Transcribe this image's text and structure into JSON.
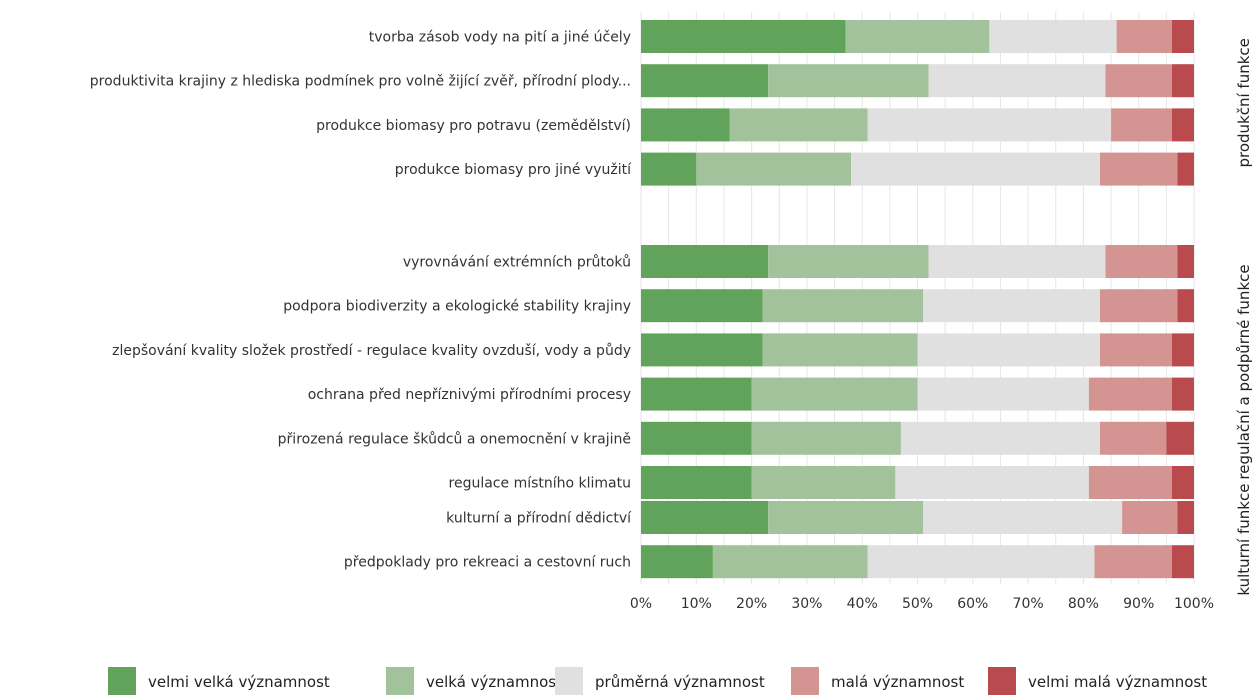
{
  "chart_data": {
    "type": "bar",
    "orientation": "horizontal",
    "stacked": true,
    "normalized": true,
    "xlim": [
      0,
      100
    ],
    "x_ticks": [
      "0%",
      "10%",
      "20%",
      "30%",
      "40%",
      "50%",
      "60%",
      "70%",
      "80%",
      "90%",
      "100%"
    ],
    "grid": true,
    "legend_position": "bottom",
    "series": [
      {
        "name": "velmi velká významnost",
        "color": "#62a35c"
      },
      {
        "name": "velká významnost",
        "color": "#a2c29b"
      },
      {
        "name": "průměrná významnost",
        "color": "#e0e0e0"
      },
      {
        "name": "malá významnost",
        "color": "#d49592"
      },
      {
        "name": "velmi malá významnost",
        "color": "#b94a4e"
      }
    ],
    "groups": [
      {
        "name": "produkční funkce",
        "items": [
          {
            "label": "tvorba zásob vody na pití a jiné účely",
            "values": [
              37,
              26,
              23,
              10,
              4
            ]
          },
          {
            "label": "produktivita krajiny z hlediska podmínek pro volně žijící zvěř, přírodní plody...",
            "values": [
              23,
              29,
              32,
              12,
              4
            ]
          },
          {
            "label": "produkce biomasy pro potravu (zemědělství)",
            "values": [
              16,
              25,
              44,
              11,
              4
            ]
          },
          {
            "label": "produkce biomasy pro jiné využití",
            "values": [
              10,
              28,
              45,
              14,
              3
            ]
          }
        ]
      },
      {
        "name": "regulační a podpůrné funkce",
        "items": [
          {
            "label": "vyrovnávání extrémních průtoků",
            "values": [
              23,
              29,
              32,
              13,
              3
            ]
          },
          {
            "label": "podpora biodiverzity a ekologické stability krajiny",
            "values": [
              22,
              29,
              32,
              14,
              3
            ]
          },
          {
            "label": "zlepšování kvality složek prostředí - regulace kvality ovzduší, vody a půdy",
            "values": [
              22,
              28,
              33,
              13,
              4
            ]
          },
          {
            "label": "ochrana před nepříznivými přírodními procesy",
            "values": [
              20,
              30,
              31,
              15,
              4
            ]
          },
          {
            "label": "přirozená regulace škůdců a onemocnění v krajině",
            "values": [
              20,
              27,
              36,
              12,
              5
            ]
          },
          {
            "label": "regulace místního klimatu",
            "values": [
              20,
              26,
              35,
              15,
              4
            ]
          }
        ]
      },
      {
        "name": "kulturní funkce",
        "items": [
          {
            "label": "kulturní a přírodní dědictví",
            "values": [
              23,
              28,
              36,
              10,
              3
            ]
          },
          {
            "label": "předpoklady pro rekreaci a cestovní ruch",
            "values": [
              13,
              28,
              41,
              14,
              4
            ]
          }
        ]
      }
    ]
  }
}
